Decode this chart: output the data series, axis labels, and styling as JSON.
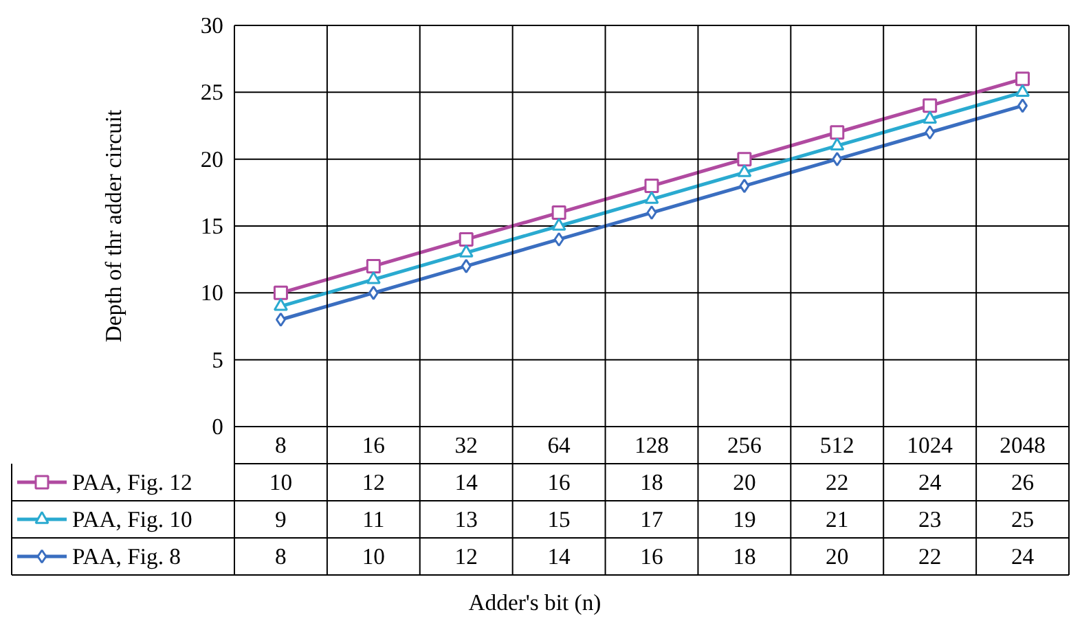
{
  "chart_data": {
    "type": "line",
    "ylabel": "Depth of thr adder circuit",
    "annotations": [
      "Adder's bit (n)"
    ],
    "categories": [
      "8",
      "16",
      "32",
      "64",
      "128",
      "256",
      "512",
      "1024",
      "2048"
    ],
    "series": [
      {
        "name": "PAA, Fig. 12",
        "color": "#b04aa0",
        "marker": "square",
        "values": [
          10,
          12,
          14,
          16,
          18,
          20,
          22,
          24,
          26
        ]
      },
      {
        "name": "PAA, Fig. 10",
        "color": "#2aaad0",
        "marker": "triangle",
        "values": [
          9,
          11,
          13,
          15,
          17,
          19,
          21,
          23,
          25
        ]
      },
      {
        "name": "PAA, Fig. 8",
        "color": "#3a6ec0",
        "marker": "diamond",
        "values": [
          8,
          10,
          12,
          14,
          16,
          18,
          20,
          22,
          24
        ]
      }
    ],
    "ylim": [
      0,
      30
    ],
    "yticks": [
      0,
      5,
      10,
      15,
      20,
      25,
      30
    ],
    "grid": true,
    "data_labels": true,
    "legend": "bottom left",
    "line_style": "solid"
  }
}
